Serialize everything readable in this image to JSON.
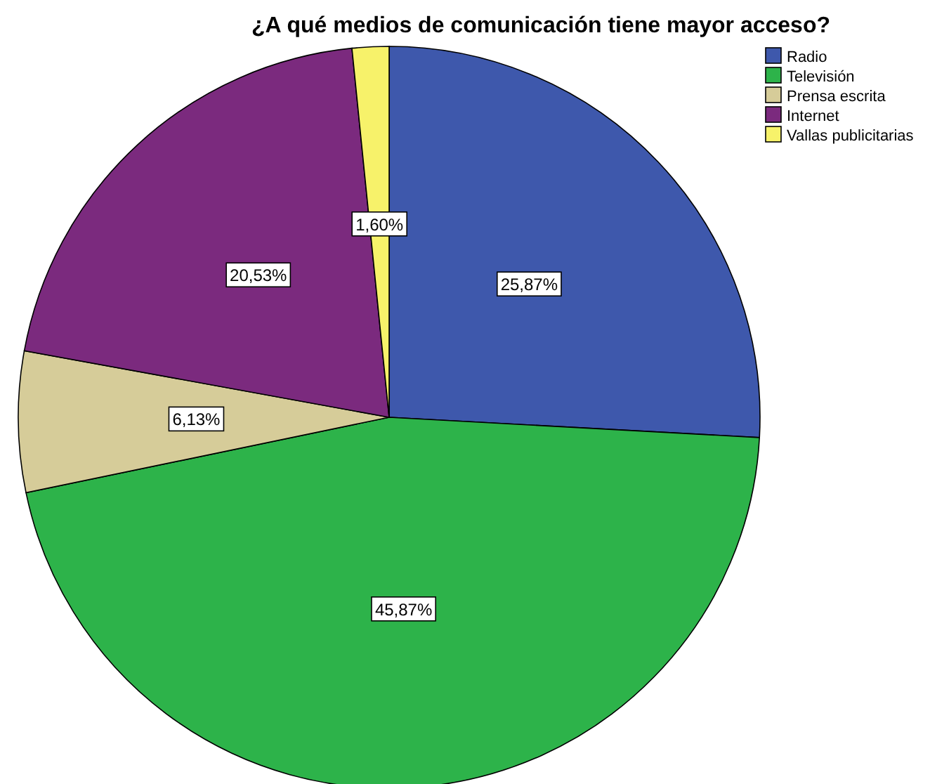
{
  "chart_data": {
    "type": "pie",
    "title": "¿A qué medios de comunicación tiene mayor acceso?",
    "categories": [
      "Radio",
      "Televisión",
      "Prensa escrita",
      "Internet",
      "Vallas publicitarias"
    ],
    "values": [
      25.87,
      45.87,
      6.13,
      20.53,
      1.6
    ],
    "value_labels": [
      "25,87%",
      "45,87%",
      "6,13%",
      "20,53%",
      "1,60%"
    ],
    "colors": [
      "#3e58ac",
      "#2db34a",
      "#d6cc99",
      "#7b2a7e",
      "#f7f26a"
    ],
    "legend": "top right"
  }
}
